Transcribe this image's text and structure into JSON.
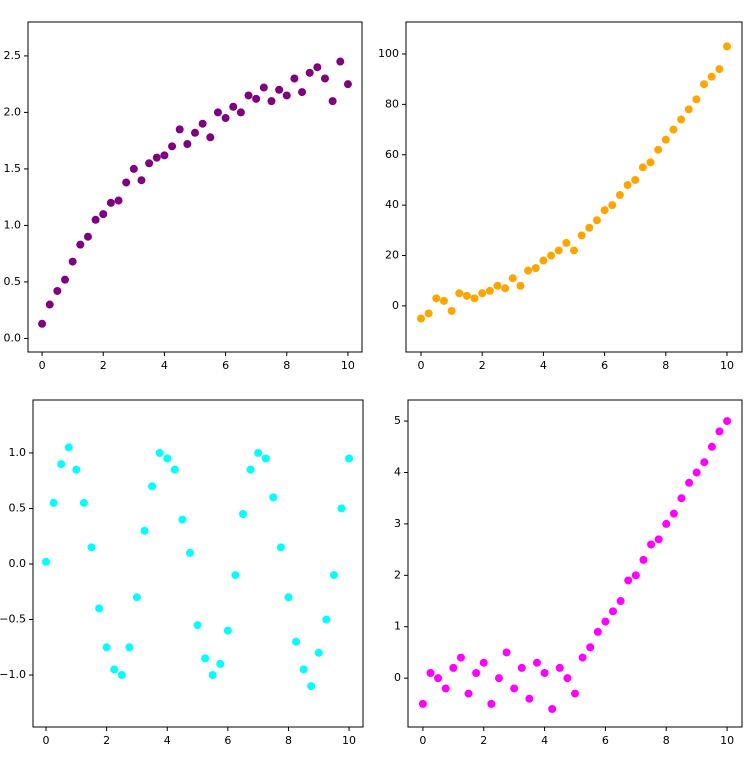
{
  "chart_data": [
    {
      "type": "scatter",
      "color": "#800080",
      "x": [
        0,
        0.25,
        0.5,
        0.75,
        1,
        1.25,
        1.5,
        1.75,
        2,
        2.25,
        2.5,
        2.75,
        3,
        3.25,
        3.5,
        3.75,
        4,
        4.25,
        4.5,
        4.75,
        5,
        5.25,
        5.5,
        5.75,
        6,
        6.25,
        6.5,
        6.75,
        7,
        7.25,
        7.5,
        7.75,
        8,
        8.25,
        8.5,
        8.75,
        9,
        9.25,
        9.5,
        9.75,
        10
      ],
      "values": [
        0.13,
        0.3,
        0.42,
        0.52,
        0.68,
        0.83,
        0.9,
        1.05,
        1.1,
        1.2,
        1.22,
        1.38,
        1.5,
        1.4,
        1.55,
        1.6,
        1.62,
        1.7,
        1.85,
        1.72,
        1.82,
        1.9,
        1.78,
        2.0,
        1.95,
        2.05,
        2.0,
        2.15,
        2.12,
        2.22,
        2.1,
        2.2,
        2.15,
        2.3,
        2.18,
        2.35,
        2.4,
        2.3,
        2.1,
        2.45,
        2.25
      ],
      "xlim": [
        -0.46,
        10.46
      ],
      "ylim": [
        -0.12,
        2.8
      ],
      "xticks": [
        0,
        2,
        4,
        6,
        8,
        10
      ],
      "yticks": [
        {
          "value": 0,
          "label": "0.0"
        },
        {
          "value": 0.5,
          "label": "0.5"
        },
        {
          "value": 1,
          "label": "1.0"
        },
        {
          "value": 1.5,
          "label": "1.5"
        },
        {
          "value": 2,
          "label": "2.0"
        },
        {
          "value": 2.5,
          "label": "2.5"
        }
      ]
    },
    {
      "type": "scatter",
      "color": "#ffa500",
      "x": [
        0,
        0.25,
        0.5,
        0.75,
        1,
        1.25,
        1.5,
        1.75,
        2,
        2.25,
        2.5,
        2.75,
        3,
        3.25,
        3.5,
        3.75,
        4,
        4.25,
        4.5,
        4.75,
        5,
        5.25,
        5.5,
        5.75,
        6,
        6.25,
        6.5,
        6.75,
        7,
        7.25,
        7.5,
        7.75,
        8,
        8.25,
        8.5,
        8.75,
        9,
        9.25,
        9.5,
        9.75,
        10
      ],
      "values": [
        -5,
        -3,
        3,
        2,
        -2,
        5,
        4,
        3,
        5,
        6,
        8,
        7,
        11,
        8,
        14,
        15,
        18,
        20,
        22,
        25,
        22,
        28,
        31,
        34,
        38,
        40,
        44,
        48,
        50,
        55,
        57,
        62,
        66,
        70,
        74,
        78,
        82,
        88,
        91,
        94,
        103
      ],
      "xlim": [
        -0.49,
        10.49
      ],
      "ylim": [
        -18.3,
        112.7
      ],
      "xticks": [
        0,
        2,
        4,
        6,
        8,
        10
      ],
      "yticks": [
        0,
        20,
        40,
        60,
        80,
        100
      ]
    },
    {
      "type": "scatter",
      "color": "#00ffff",
      "x": [
        0,
        0.25,
        0.5,
        0.75,
        1,
        1.25,
        1.5,
        1.75,
        2,
        2.25,
        2.5,
        2.75,
        3,
        3.25,
        3.5,
        3.75,
        4,
        4.25,
        4.5,
        4.75,
        5,
        5.25,
        5.5,
        5.75,
        6,
        6.25,
        6.5,
        6.75,
        7,
        7.25,
        7.5,
        7.75,
        8,
        8.25,
        8.5,
        8.75,
        9,
        9.25,
        9.5,
        9.75,
        10
      ],
      "values": [
        0.02,
        0.55,
        0.9,
        1.05,
        0.85,
        0.55,
        0.15,
        -0.4,
        -0.75,
        -0.95,
        -1.0,
        -0.75,
        -0.3,
        0.3,
        0.7,
        1.0,
        0.95,
        0.85,
        0.4,
        0.1,
        -0.55,
        -0.85,
        -1.0,
        -0.9,
        -0.6,
        -0.1,
        0.45,
        0.85,
        1.0,
        0.95,
        0.6,
        0.15,
        -0.3,
        -0.7,
        -0.95,
        -1.1,
        -0.8,
        -0.5,
        -0.1,
        0.5,
        0.95
      ],
      "xlim": [
        -0.43,
        10.46
      ],
      "ylim": [
        -1.468,
        1.477
      ],
      "xticks": [
        0,
        2,
        4,
        6,
        8,
        10
      ],
      "yticks": [
        {
          "value": -1,
          "label": "−1.0"
        },
        {
          "value": -0.5,
          "label": "−0.5"
        },
        {
          "value": 0,
          "label": "0.0"
        },
        {
          "value": 0.5,
          "label": "0.5"
        },
        {
          "value": 1,
          "label": "1.0"
        }
      ]
    },
    {
      "type": "scatter",
      "color": "#ff00ff",
      "x": [
        0,
        0.25,
        0.5,
        0.75,
        1,
        1.25,
        1.5,
        1.75,
        2,
        2.25,
        2.5,
        2.75,
        3,
        3.25,
        3.5,
        3.75,
        4,
        4.25,
        4.5,
        4.75,
        5,
        5.25,
        5.5,
        5.75,
        6,
        6.25,
        6.5,
        6.75,
        7,
        7.25,
        7.5,
        7.75,
        8,
        8.25,
        8.5,
        8.75,
        9,
        9.25,
        9.5,
        9.75,
        10
      ],
      "values": [
        -0.5,
        0.1,
        0.0,
        -0.2,
        0.2,
        0.4,
        -0.3,
        0.1,
        0.3,
        -0.5,
        0.0,
        0.5,
        -0.2,
        0.2,
        -0.4,
        0.3,
        0.1,
        -0.6,
        0.2,
        0.0,
        -0.3,
        0.4,
        0.6,
        0.9,
        1.1,
        1.3,
        1.5,
        1.9,
        2.0,
        2.3,
        2.6,
        2.7,
        3.0,
        3.2,
        3.5,
        3.8,
        4.0,
        4.2,
        4.5,
        4.8,
        5.0
      ],
      "xlim": [
        -0.49,
        10.49
      ],
      "ylim": [
        -0.95,
        5.41
      ],
      "xticks": [
        0,
        2,
        4,
        6,
        8,
        10
      ],
      "yticks": [
        0,
        1,
        2,
        3,
        4,
        5
      ]
    }
  ]
}
